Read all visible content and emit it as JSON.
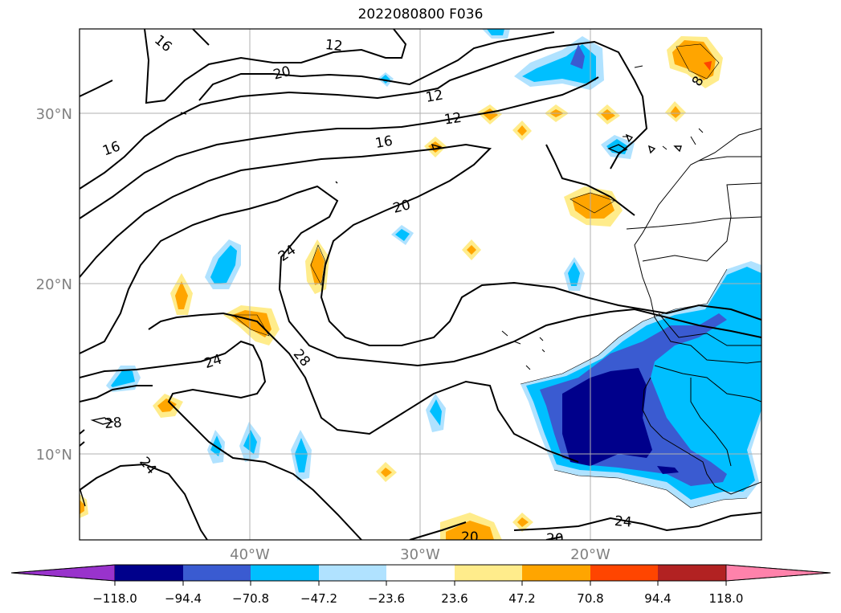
{
  "title": "2022080800 F036",
  "axes": {
    "lat_labels": [
      "30°N",
      "20°N",
      "10°N"
    ],
    "lon_labels": [
      "40°W",
      "30°W",
      "20°W"
    ]
  },
  "contour_labels": [
    "16",
    "12",
    "20",
    "12",
    "12",
    "16",
    "16",
    "20",
    "24",
    "24",
    "28",
    "28",
    "24",
    "24",
    "20",
    "20",
    "8"
  ],
  "colorbar": {
    "colors": [
      "#9933cc",
      "#00008b",
      "#3a5bd1",
      "#00bfff",
      "#b0e2ff",
      "#ffffff",
      "#ffec8b",
      "#ffa500",
      "#ff4500",
      "#b22222",
      "#ff82ab"
    ],
    "tick_labels": [
      "−118.0",
      "−94.4",
      "−70.8",
      "−47.2",
      "−23.6",
      "23.6",
      "47.2",
      "70.8",
      "94.4",
      "118.0"
    ]
  }
}
